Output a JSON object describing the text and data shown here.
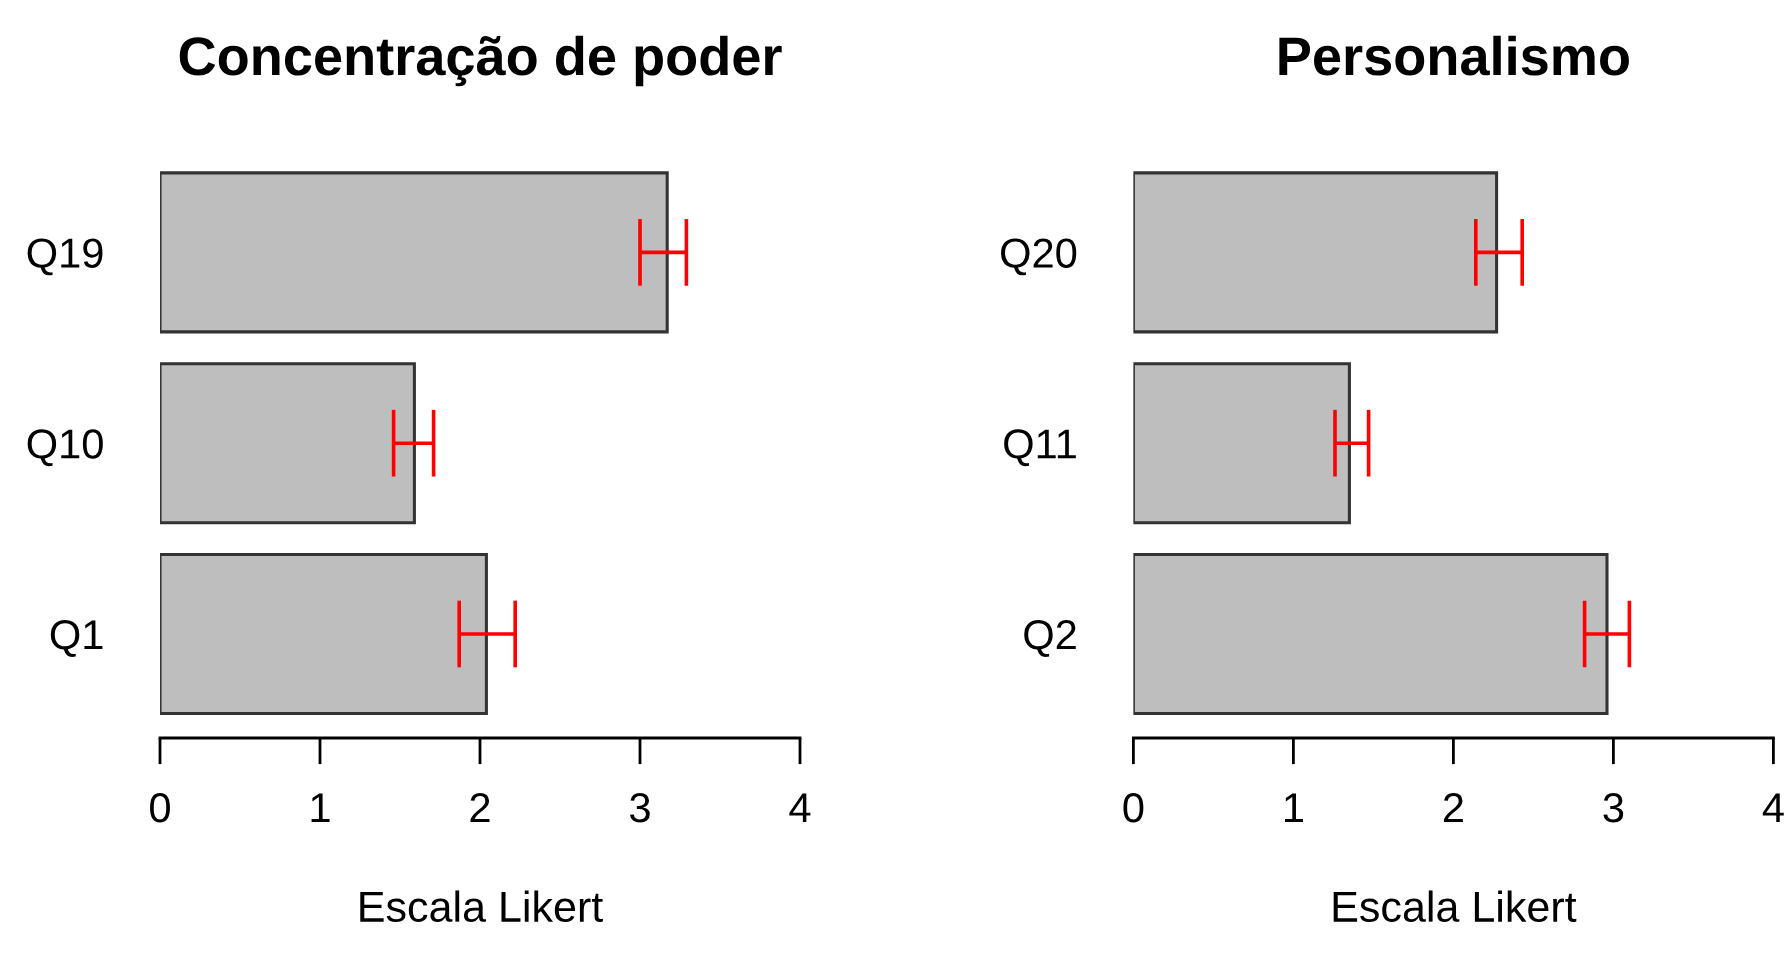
{
  "chart_data": [
    {
      "type": "bar",
      "orientation": "horizontal",
      "title": "Concentração de poder",
      "xlabel": "Escala Likert",
      "categories": [
        "Q19",
        "Q10",
        "Q1"
      ],
      "values": [
        3.17,
        1.59,
        2.04
      ],
      "errors": [
        [
          3.0,
          3.29
        ],
        [
          1.46,
          1.71
        ],
        [
          1.87,
          2.22
        ]
      ],
      "color": "#bebebe",
      "xlim": [
        0,
        4
      ],
      "xticks": [
        0,
        1,
        2,
        3,
        4
      ]
    },
    {
      "type": "bar",
      "orientation": "horizontal",
      "title": "Personalismo",
      "xlabel": "Escala Likert",
      "categories": [
        "Q20",
        "Q11",
        "Q2"
      ],
      "values": [
        2.27,
        1.35,
        2.96
      ],
      "errors": [
        [
          2.14,
          2.43
        ],
        [
          1.26,
          1.47
        ],
        [
          2.82,
          3.1
        ]
      ],
      "color": "#bebebe",
      "xlim": [
        0,
        4
      ],
      "xticks": [
        0,
        1,
        2,
        3,
        4
      ]
    }
  ]
}
